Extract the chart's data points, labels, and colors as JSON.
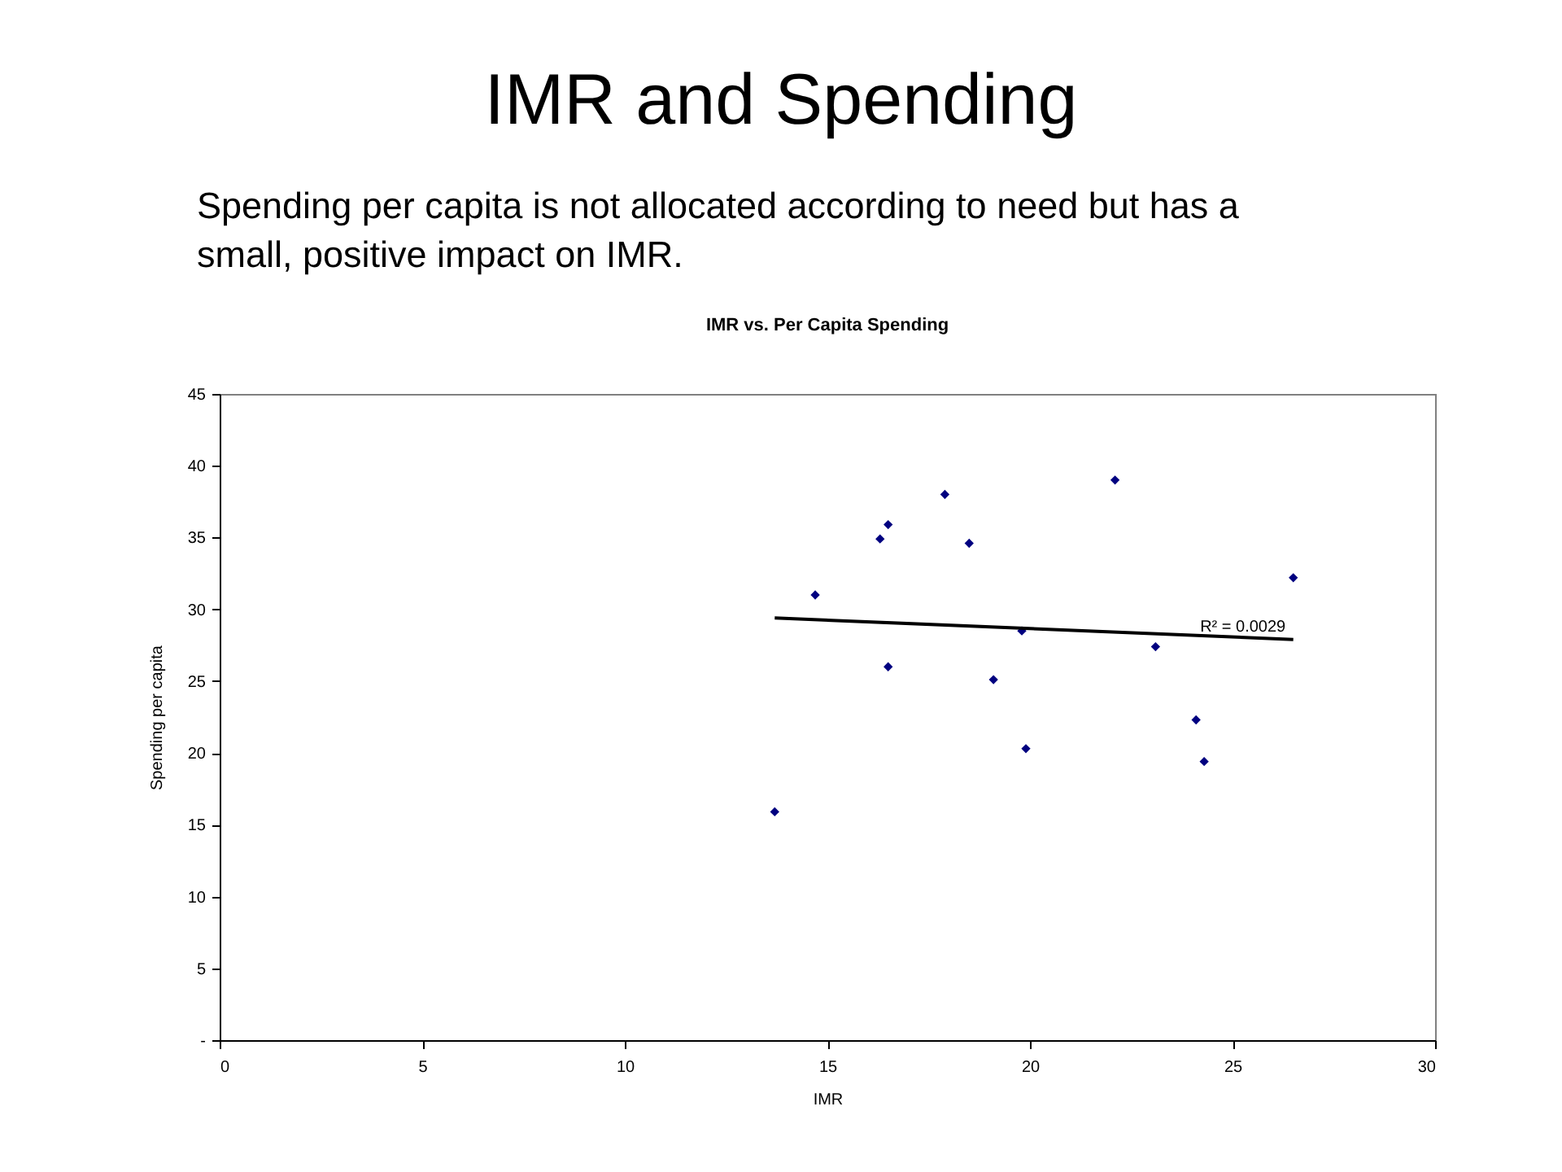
{
  "chart_data": {
    "type": "scatter",
    "title": "IMR and Spending",
    "subtitle": "IMR vs. Per Capita Spending",
    "xlabel": "IMR",
    "ylabel": "Spending per capita",
    "annotations": [
      "Spending per capita is not allocated according to need but has a small, positive impact on IMR.",
      {
        "text": "R² = 0.0029",
        "x": 24.2,
        "y": 28.0
      }
    ],
    "xlim": [
      0,
      30
    ],
    "xticks": [
      0,
      5,
      10,
      15,
      20,
      25,
      30
    ],
    "ylim": [
      0,
      45
    ],
    "yticks": [
      {
        "value": 0,
        "label": "-"
      },
      5,
      10,
      15,
      20,
      25,
      30,
      35,
      40,
      45
    ],
    "series": [
      {
        "color": "#000080",
        "marker": "diamond",
        "x": [
          13.7,
          14.7,
          16.3,
          16.5,
          16.5,
          17.9,
          18.5,
          19.1,
          19.8,
          19.9,
          22.1,
          23.1,
          24.1,
          24.3,
          26.5
        ],
        "values": [
          15.9,
          31.0,
          34.9,
          35.9,
          26.0,
          38.0,
          34.6,
          25.1,
          28.5,
          20.3,
          39.0,
          27.4,
          22.3,
          19.4,
          32.2
        ]
      },
      {
        "type": "line",
        "color": "#000000",
        "line_style": "solid",
        "x": [
          13.7,
          26.5
        ],
        "values": [
          29.4,
          27.9
        ]
      }
    ]
  }
}
